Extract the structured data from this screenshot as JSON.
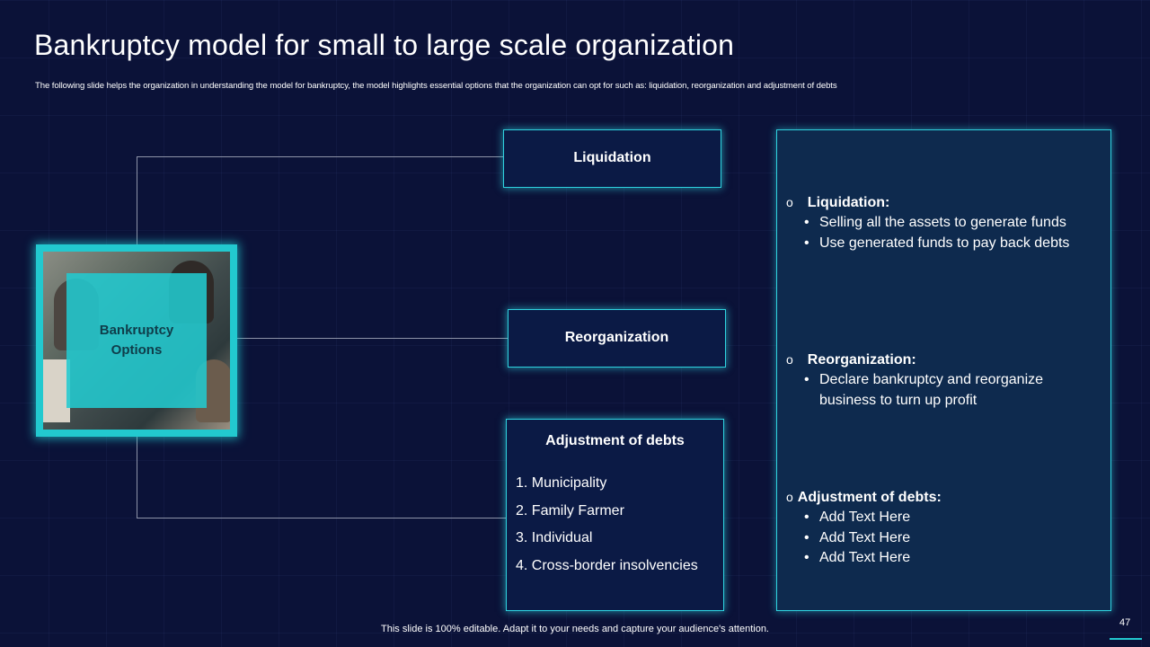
{
  "slide": {
    "title": "Bankruptcy model for small to large scale organization",
    "subtitle": "The following slide helps the organization in understanding the model for bankruptcy, the model highlights essential options that the organization can opt for such as: liquidation, reorganization and adjustment of debts",
    "page_number": "47",
    "footer": "This slide is 100% editable. Adapt it to your needs and capture your audience's attention."
  },
  "hub": {
    "label": "Bankruptcy Options"
  },
  "options": {
    "liquidation": "Liquidation",
    "reorganization": "Reorganization",
    "adjustment": {
      "title": "Adjustment of debts",
      "items": [
        "1. Municipality",
        "2. Family Farmer",
        "3. Individual",
        "4. Cross-border insolvencies"
      ]
    }
  },
  "details": {
    "marker": "o",
    "bullet": "•",
    "sections": [
      {
        "heading": "Liquidation:",
        "points": [
          "Selling all the assets to generate funds",
          "Use generated funds to pay back debts"
        ]
      },
      {
        "heading": "Reorganization:",
        "points": [
          "Declare bankruptcy and reorganize business to turn up profit"
        ]
      },
      {
        "heading": "Adjustment of debts:",
        "points": [
          "Add Text Here",
          "Add Text Here",
          "Add Text Here"
        ]
      }
    ]
  },
  "colors": {
    "background": "#0b1238",
    "accent": "#22c9cf",
    "panel": "#0e2a4e"
  }
}
